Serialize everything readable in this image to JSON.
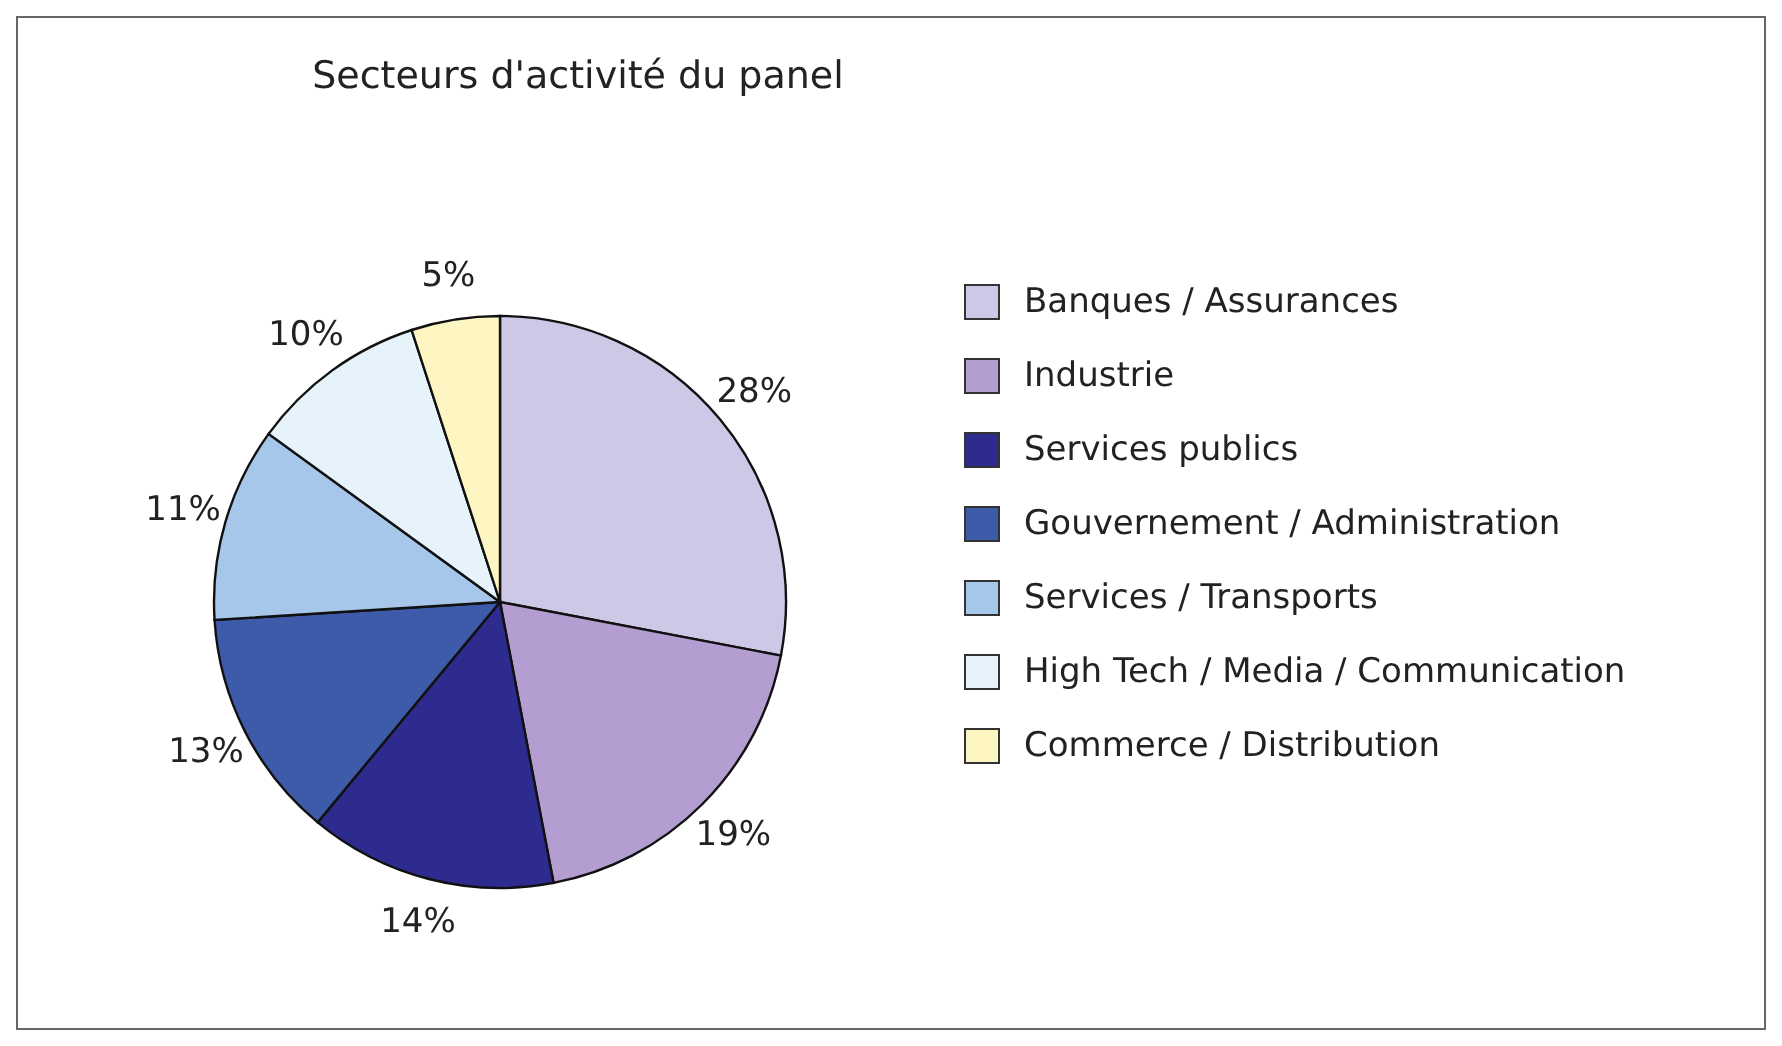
{
  "chart_data": {
    "type": "pie",
    "title": "Secteurs d'activité du panel",
    "categories": [
      "Banques / Assurances",
      "Industrie",
      "Services publics",
      "Gouvernement / Administration",
      "Services / Transports",
      "High Tech / Media / Communication",
      "Commerce / Distribution"
    ],
    "values": [
      28,
      19,
      14,
      13,
      11,
      10,
      5
    ],
    "value_labels": [
      "28%",
      "19%",
      "14%",
      "13%",
      "11%",
      "10%",
      "5%"
    ],
    "colors": [
      "#cdc8e6",
      "#b49dd0",
      "#2e2b8e",
      "#3d5ba8",
      "#a6c6ea",
      "#e6f3fb",
      "#fdf6c3"
    ],
    "legend": "right"
  }
}
